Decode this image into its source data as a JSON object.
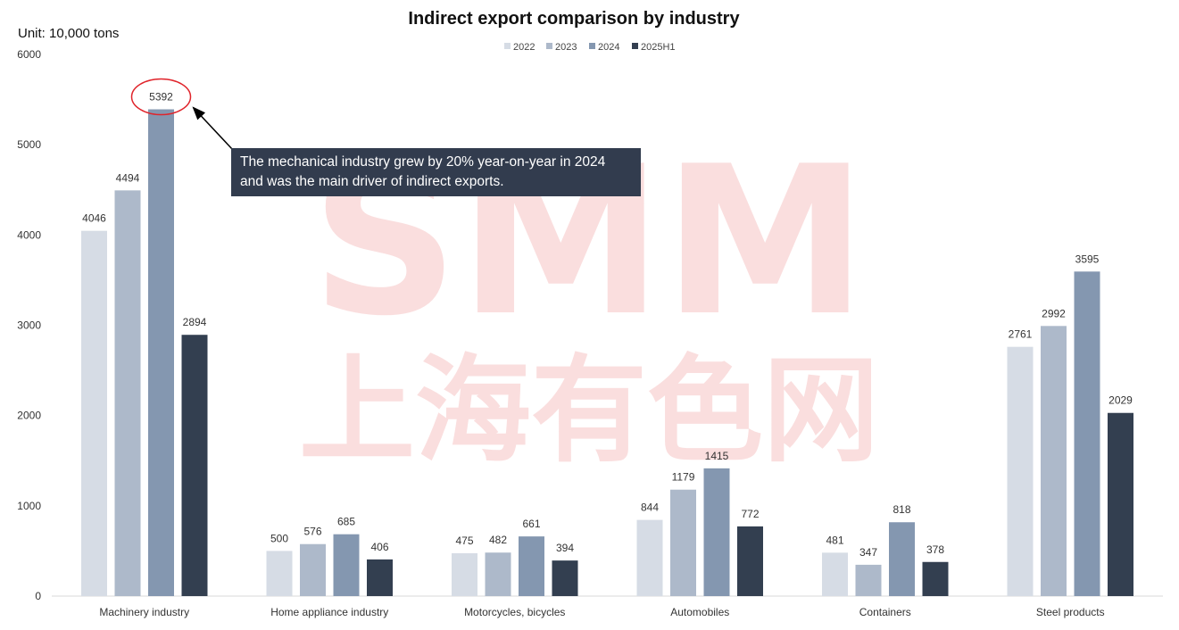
{
  "chart_data": {
    "type": "bar",
    "title": "Indirect export comparison by industry",
    "unit_label": "Unit: 10,000 tons",
    "categories": [
      "Machinery industry",
      "Home appliance industry",
      "Motorcycles, bicycles",
      "Automobiles",
      "Containers",
      "Steel products"
    ],
    "series": [
      {
        "name": "2022",
        "color": "#d6dce5",
        "values": [
          4046,
          500,
          475,
          844,
          481,
          2761
        ]
      },
      {
        "name": "2023",
        "color": "#adb9ca",
        "values": [
          4494,
          576,
          482,
          1179,
          347,
          2992
        ]
      },
      {
        "name": "2024",
        "color": "#8497b0",
        "values": [
          5392,
          685,
          661,
          1415,
          818,
          3595
        ]
      },
      {
        "name": "2025H1",
        "color": "#333f50",
        "values": [
          2894,
          406,
          394,
          772,
          378,
          2029
        ]
      }
    ],
    "ylim": [
      0,
      6000
    ],
    "yticks": [
      0,
      1000,
      2000,
      3000,
      4000,
      5000,
      6000
    ],
    "grid": false,
    "legend_position": "top-center",
    "highlight": {
      "category_index": 0,
      "series_index": 2,
      "value": 5392,
      "color": "#e0242b"
    },
    "annotation_lines": [
      "The mechanical industry grew by 20% year-on-year in 2024",
      "and was the main driver of indirect exports."
    ],
    "watermark": {
      "line1": "SMM",
      "line2": "上海有色网"
    }
  }
}
